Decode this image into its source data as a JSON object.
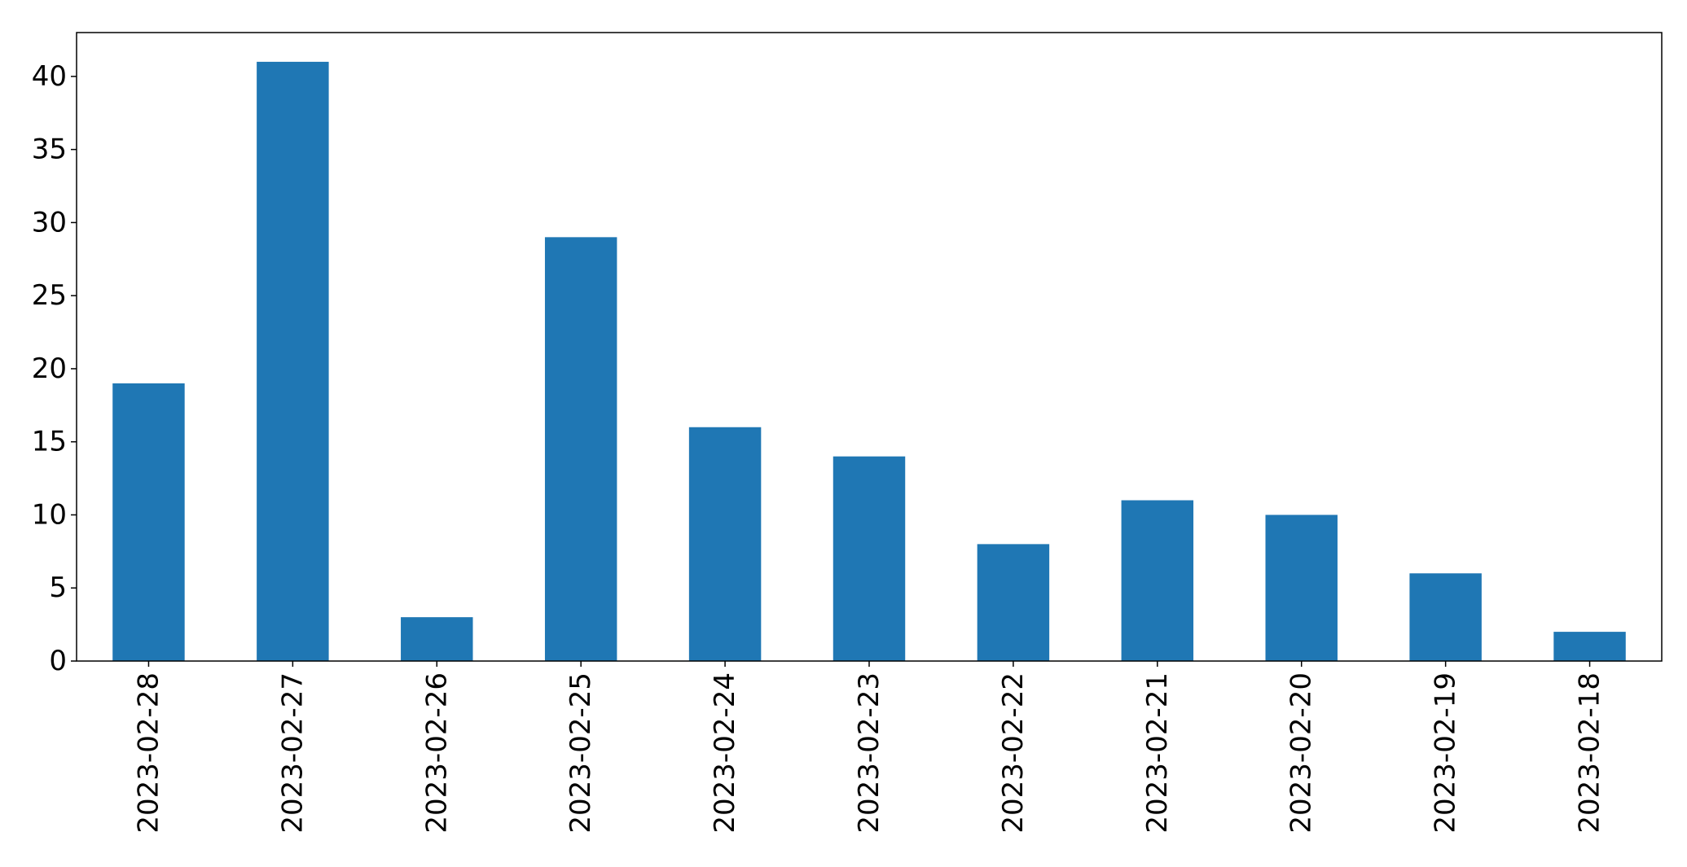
{
  "chart_data": {
    "type": "bar",
    "title": "",
    "xlabel": "",
    "ylabel": "",
    "categories": [
      "2023-02-28",
      "2023-02-27",
      "2023-02-26",
      "2023-02-25",
      "2023-02-24",
      "2023-02-23",
      "2023-02-22",
      "2023-02-21",
      "2023-02-20",
      "2023-02-19",
      "2023-02-18"
    ],
    "values": [
      19,
      41,
      3,
      29,
      16,
      14,
      8,
      11,
      10,
      6,
      2
    ],
    "ylim": [
      0,
      43
    ],
    "yticks": [
      0,
      5,
      10,
      15,
      20,
      25,
      30,
      35,
      40
    ],
    "grid": false,
    "legend": "none",
    "bar_color": "#1f77b4"
  }
}
